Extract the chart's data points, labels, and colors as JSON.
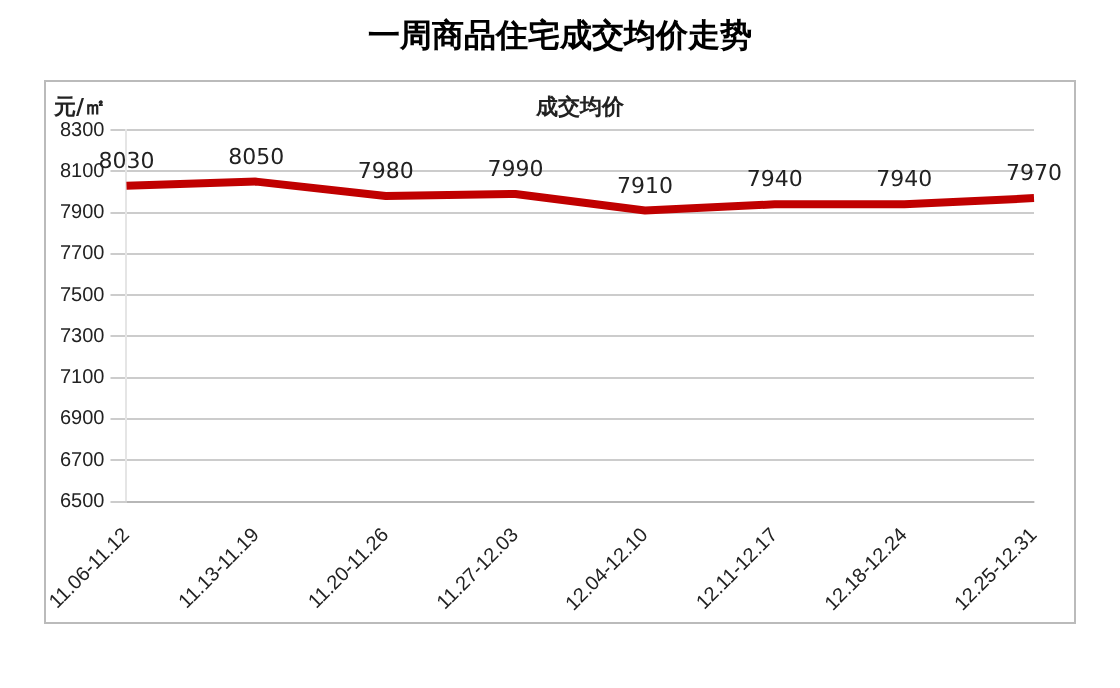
{
  "chart_data": {
    "type": "line",
    "title": "一周商品住宅成交均价走势",
    "subtitle": "成交均价",
    "ylabel": "元/㎡",
    "categories": [
      "11.06-11.12",
      "11.13-11.19",
      "11.20-11.26",
      "11.27-12.03",
      "12.04-12.10",
      "12.11-12.17",
      "12.18-12.24",
      "12.25-12.31"
    ],
    "series": [
      {
        "color": "#c00000",
        "values": [
          8030,
          8050,
          7980,
          7990,
          7910,
          7940,
          7940,
          7970
        ]
      }
    ],
    "ylim": [
      6500,
      8300
    ],
    "yticks": [
      6500,
      6700,
      6900,
      7100,
      7300,
      7500,
      7700,
      7900,
      8100,
      8300
    ],
    "grid": "y",
    "legend": false,
    "marker": "none",
    "line_style": "solid",
    "data_labels": true
  }
}
